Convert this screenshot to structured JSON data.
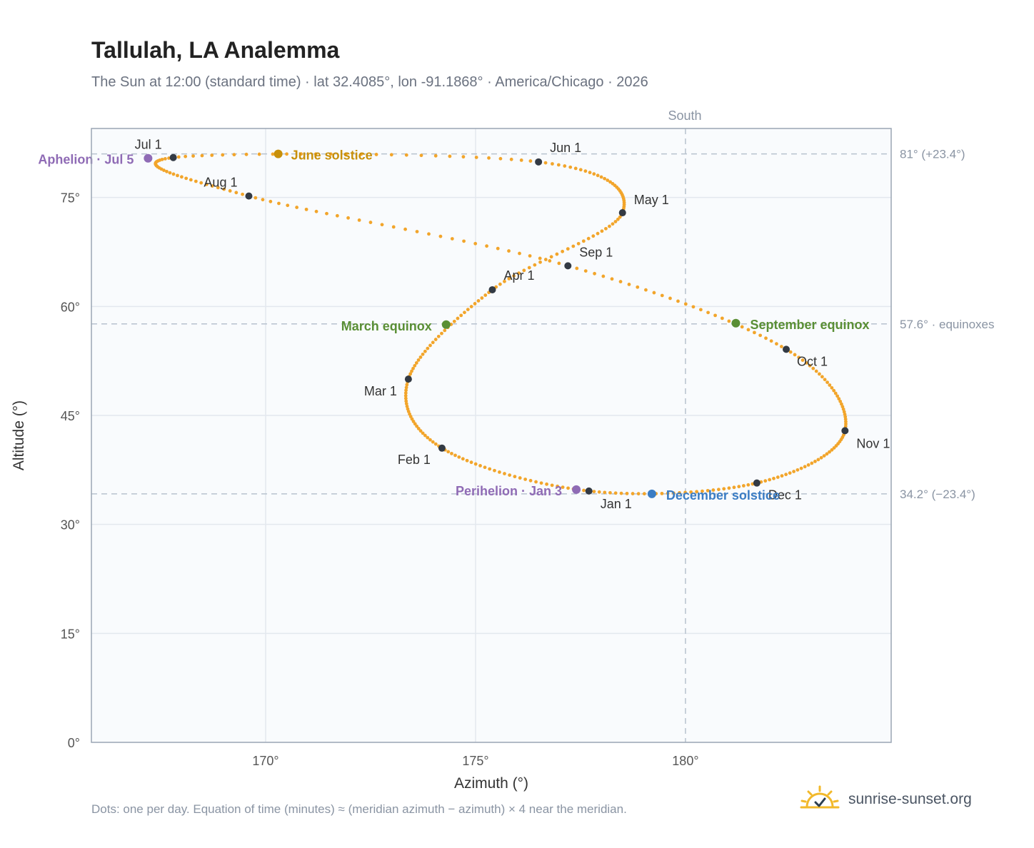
{
  "page": {
    "title": "Tallulah, LA Analemma",
    "subtitle": "The Sun at 12:00 (standard time) · lat 32.4085°, lon -91.1868° · America/Chicago · 2026",
    "footnote": "Dots: one per day. Equation of time (minutes) ≈ (meridian azimuth − azimuth) × 4 near the meridian.",
    "brand": "sunrise-sunset.org",
    "brand_icon": "sun-logo-icon"
  },
  "colors": {
    "path": "#f2a52b",
    "month_marker": "#333a44",
    "solstice_june": "#c8900a",
    "equinox": "#5a8f35",
    "solstice_december": "#3b7dc4",
    "apsis": "#8f6bb5",
    "grid": "#e3e8ee",
    "reference": "#b8c2ce",
    "plot_bg": "#f9fbfd"
  },
  "chart_data": {
    "type": "scatter",
    "xlabel": "Azimuth (°)",
    "ylabel": "Altitude (°)",
    "xlim": [
      165.85,
      184.9
    ],
    "ylim": [
      0,
      84.5
    ],
    "x_ticks": [
      {
        "value": 170,
        "label": "170°"
      },
      {
        "value": 175,
        "label": "175°"
      },
      {
        "value": 180,
        "label": "180°"
      }
    ],
    "y_ticks": [
      {
        "value": 0,
        "label": "0°"
      },
      {
        "value": 15,
        "label": "15°"
      },
      {
        "value": 30,
        "label": "30°"
      },
      {
        "value": 45,
        "label": "45°"
      },
      {
        "value": 60,
        "label": "60°"
      },
      {
        "value": 75,
        "label": "75°"
      }
    ],
    "grid": true,
    "meridian": {
      "azimuth": 180,
      "label": "South"
    },
    "reference_lines": [
      {
        "altitude": 81.0,
        "label": "81° (+23.4°)"
      },
      {
        "altitude": 57.6,
        "label": "57.6° · equinoxes"
      },
      {
        "altitude": 34.2,
        "label": "34.2° (−23.4°)"
      }
    ],
    "monthly_points": [
      {
        "label": "Jan 1",
        "azimuth": 177.7,
        "altitude": 34.6
      },
      {
        "label": "Feb 1",
        "azimuth": 174.2,
        "altitude": 40.5
      },
      {
        "label": "Mar 1",
        "azimuth": 173.4,
        "altitude": 50.0
      },
      {
        "label": "Apr 1",
        "azimuth": 175.4,
        "altitude": 62.3
      },
      {
        "label": "May 1",
        "azimuth": 178.5,
        "altitude": 72.9
      },
      {
        "label": "Jun 1",
        "azimuth": 176.5,
        "altitude": 79.9
      },
      {
        "label": "Jul 1",
        "azimuth": 167.8,
        "altitude": 80.5
      },
      {
        "label": "Aug 1",
        "azimuth": 169.6,
        "altitude": 75.2
      },
      {
        "label": "Sep 1",
        "azimuth": 177.2,
        "altitude": 65.6
      },
      {
        "label": "Oct 1",
        "azimuth": 182.4,
        "altitude": 54.1
      },
      {
        "label": "Nov 1",
        "azimuth": 183.8,
        "altitude": 42.9
      },
      {
        "label": "Dec 1",
        "azimuth": 181.7,
        "altitude": 35.7
      }
    ],
    "events": [
      {
        "label": "June solstice",
        "azimuth": 170.3,
        "altitude": 81.0,
        "color_key": "solstice_june"
      },
      {
        "label": "March equinox",
        "azimuth": 174.3,
        "altitude": 57.5,
        "color_key": "equinox"
      },
      {
        "label": "September equinox",
        "azimuth": 181.2,
        "altitude": 57.7,
        "color_key": "equinox"
      },
      {
        "label": "December solstice",
        "azimuth": 179.2,
        "altitude": 34.2,
        "color_key": "solstice_december"
      },
      {
        "label": "Aphelion · Jul 5",
        "azimuth": 167.2,
        "altitude": 80.4,
        "color_key": "apsis"
      },
      {
        "label": "Perihelion · Jan 3",
        "azimuth": 177.4,
        "altitude": 34.8,
        "color_key": "apsis"
      }
    ]
  }
}
